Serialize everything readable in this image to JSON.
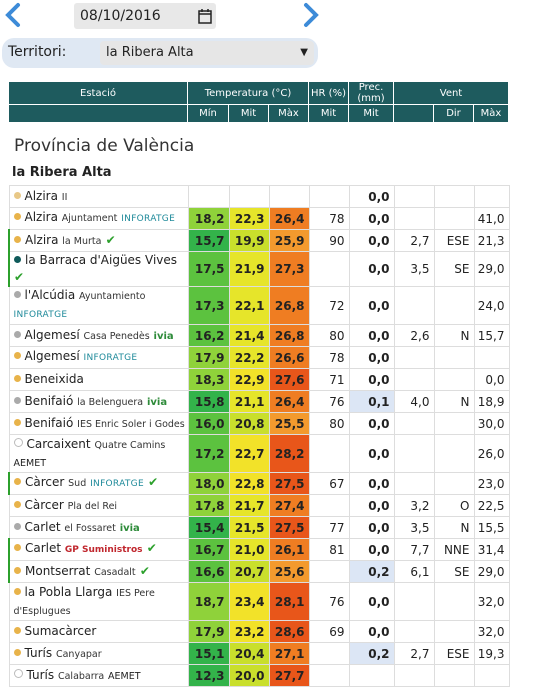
{
  "header": {
    "date": "08/10/2016",
    "territory_label": "Territori:",
    "territory": "la Ribera Alta"
  },
  "table": {
    "groups": [
      "Estació",
      "Temperatura (°C)",
      "HR (%)",
      "Prec. (mm)",
      "Vent"
    ],
    "subheaders": [
      "Mín",
      "Mit",
      "Màx",
      "Mit",
      "Mit",
      "Dir",
      "Màx"
    ],
    "province": "Província de València",
    "region": "la Ribera Alta",
    "rows": [
      {
        "name": "Alzira",
        "sub": "II",
        "network": null,
        "dot": "#e8c887",
        "verified": false,
        "cells": [
          null,
          null,
          null,
          null,
          "0,0",
          null,
          null,
          null
        ]
      },
      {
        "name": "Alzira",
        "sub": "Ajuntament",
        "network": "INFORATGE",
        "dot": "#e8b34a",
        "verified": false,
        "cells": [
          "18,2",
          "22,3",
          "26,4",
          "78",
          "0,0",
          null,
          null,
          "41,0"
        ]
      },
      {
        "name": "Alzira",
        "sub": "la Murta",
        "network": null,
        "dot": "#e8b34a",
        "verified": true,
        "cells": [
          "15,7",
          "19,9",
          "25,9",
          "90",
          "0,0",
          "2,7",
          "ESE",
          "21,3"
        ]
      },
      {
        "name": "la Barraca d'Aigües Vives",
        "sub": null,
        "network": null,
        "dot": "#0f5a5a",
        "verified": true,
        "cells": [
          "17,5",
          "21,9",
          "27,3",
          null,
          "0,0",
          "3,5",
          "SE",
          "29,0"
        ]
      },
      {
        "name": "l'Alcúdia",
        "sub": "Ayuntamiento",
        "network": "INFORATGE",
        "dot": "#aaaaaa",
        "verified": false,
        "cells": [
          "17,3",
          "22,1",
          "26,8",
          "72",
          "0,0",
          null,
          null,
          "24,0"
        ]
      },
      {
        "name": "Algemesí",
        "sub": "Casa Penedès",
        "network": "ivia",
        "dot": "#aaaaaa",
        "verified": false,
        "cells": [
          "16,2",
          "21,4",
          "26,8",
          "80",
          "0,0",
          "2,6",
          "N",
          "15,7"
        ]
      },
      {
        "name": "Algemesí",
        "sub": null,
        "network": "INFORATGE",
        "dot": "#e8b34a",
        "verified": false,
        "cells": [
          "17,9",
          "22,2",
          "26,6",
          "78",
          "0,0",
          null,
          null,
          null
        ]
      },
      {
        "name": "Beneixida",
        "sub": null,
        "network": null,
        "dot": "#e8b34a",
        "verified": false,
        "cells": [
          "18,3",
          "22,9",
          "27,6",
          "71",
          "0,0",
          null,
          null,
          "0,0"
        ]
      },
      {
        "name": "Benifaió",
        "sub": "la Belenguera",
        "network": "ivia",
        "dot": "#aaaaaa",
        "verified": false,
        "cells": [
          "15,8",
          "21,1",
          "26,4",
          "76",
          "0,1",
          "4,0",
          "N",
          "18,9"
        ]
      },
      {
        "name": "Benifaió",
        "sub": "IES Enric Soler i Godes",
        "network": null,
        "dot": "#e8b34a",
        "verified": false,
        "cells": [
          "16,0",
          "20,8",
          "25,5",
          "80",
          "0,0",
          null,
          null,
          "30,0"
        ]
      },
      {
        "name": "Carcaixent",
        "sub": "Quatre Camins",
        "network": "AEMET",
        "dot": "#ffffff",
        "verified": false,
        "cells": [
          "17,2",
          "22,7",
          "28,2",
          null,
          "0,0",
          null,
          null,
          "26,0"
        ]
      },
      {
        "name": "Càrcer",
        "sub": "Sud",
        "network": "INFORATGE",
        "dot": "#e8b34a",
        "verified": true,
        "cells": [
          "18,0",
          "22,8",
          "27,5",
          "67",
          "0,0",
          null,
          null,
          "23,0"
        ]
      },
      {
        "name": "Càrcer",
        "sub": "Pla del Rei",
        "network": null,
        "dot": "#e8b34a",
        "verified": false,
        "cells": [
          "17,8",
          "21,7",
          "27,4",
          null,
          "0,0",
          "3,2",
          "O",
          "22,5"
        ]
      },
      {
        "name": "Carlet",
        "sub": "el Fossaret",
        "network": "ivia",
        "dot": "#aaaaaa",
        "verified": false,
        "cells": [
          "15,4",
          "21,5",
          "27,5",
          "77",
          "0,0",
          "3,5",
          "N",
          "15,5"
        ]
      },
      {
        "name": "Carlet",
        "sub": null,
        "network": "GP Suministros",
        "dot": "#e8b34a",
        "verified": true,
        "cells": [
          "16,7",
          "21,0",
          "26,1",
          "81",
          "0,0",
          "7,7",
          "NNE",
          "31,4"
        ]
      },
      {
        "name": "Montserrat",
        "sub": "Casadalt",
        "network": null,
        "dot": "#e8b34a",
        "verified": true,
        "cells": [
          "16,6",
          "20,7",
          "25,6",
          null,
          "0,2",
          "6,1",
          "SE",
          "29,0"
        ]
      },
      {
        "name": "la Pobla Llarga",
        "sub": "IES Pere d'Esplugues",
        "network": null,
        "dot": "#e8b34a",
        "verified": false,
        "cells": [
          "18,7",
          "23,4",
          "28,1",
          "76",
          "0,0",
          null,
          null,
          "32,0"
        ]
      },
      {
        "name": "Sumacàrcer",
        "sub": null,
        "network": null,
        "dot": "#e8b34a",
        "verified": false,
        "cells": [
          "17,9",
          "23,2",
          "28,6",
          "69",
          "0,0",
          null,
          null,
          "32,0"
        ]
      },
      {
        "name": "Turís",
        "sub": "Canyapar",
        "network": null,
        "dot": "#e8b34a",
        "verified": false,
        "cells": [
          "15,1",
          "20,4",
          "27,1",
          null,
          "0,2",
          "2,7",
          "ESE",
          "19,3"
        ]
      },
      {
        "name": "Turís",
        "sub": "Calabarra",
        "network": "AEMET",
        "dot": "#ffffff",
        "verified": false,
        "cells": [
          "12,3",
          "20,0",
          "27,7",
          null,
          null,
          null,
          null,
          null
        ]
      }
    ]
  }
}
